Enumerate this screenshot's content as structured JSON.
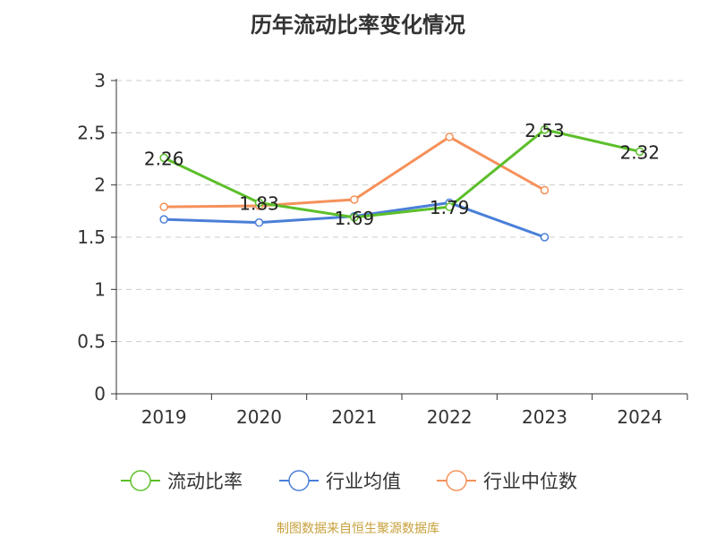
{
  "source_note": "制图数据来自恒生聚源数据库",
  "chart_data": {
    "type": "line",
    "title": "历年流动比率变化情况",
    "xlabel": "",
    "ylabel": "",
    "categories": [
      "2019",
      "2020",
      "2021",
      "2022",
      "2023",
      "2024"
    ],
    "ylim": [
      0,
      3
    ],
    "yticks": [
      "0",
      "0.5",
      "1",
      "1.5",
      "2",
      "2.5",
      "3"
    ],
    "grid": true,
    "legend_position": "bottom",
    "series": [
      {
        "name": "流动比率",
        "color": "#5cbf2a",
        "values": [
          2.26,
          1.83,
          1.69,
          1.79,
          2.53,
          2.32
        ],
        "labels": [
          "2.26",
          "1.83",
          "1.69",
          "1.79",
          "2.53",
          "2.32"
        ]
      },
      {
        "name": "行业均值",
        "color": "#4a7fd8",
        "values": [
          1.67,
          1.64,
          1.7,
          1.83,
          1.5,
          null
        ]
      },
      {
        "name": "行业中位数",
        "color": "#f5915a",
        "values": [
          1.79,
          1.8,
          1.86,
          2.46,
          1.95,
          null
        ]
      }
    ]
  }
}
